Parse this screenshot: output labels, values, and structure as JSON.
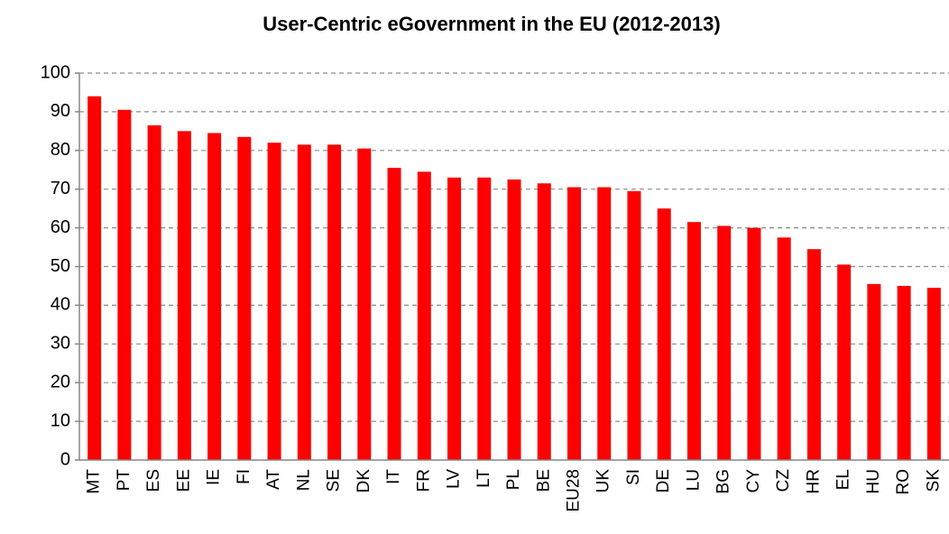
{
  "chart_data": {
    "type": "bar",
    "title": "User-Centric eGovernment in the EU (2012-2013)",
    "categories": [
      "MT",
      "PT",
      "ES",
      "EE",
      "IE",
      "FI",
      "AT",
      "NL",
      "SE",
      "DK",
      "IT",
      "FR",
      "LV",
      "LT",
      "PL",
      "BE",
      "EU28",
      "UK",
      "SI",
      "DE",
      "LU",
      "BG",
      "CY",
      "CZ",
      "HR",
      "EL",
      "HU",
      "RO",
      "SK"
    ],
    "values": [
      94,
      90.5,
      86.5,
      85,
      84.5,
      83.5,
      82,
      81.5,
      81.5,
      80.5,
      75.5,
      74.5,
      73,
      73,
      72.5,
      71.5,
      70.5,
      70.5,
      69.5,
      65,
      61.5,
      60.5,
      60,
      57.5,
      54.5,
      50.5,
      45.5,
      45,
      44.5
    ],
    "color": "#ff0000",
    "ylim": [
      0,
      100
    ],
    "yticks": [
      0,
      10,
      20,
      30,
      40,
      50,
      60,
      70,
      80,
      90,
      100
    ],
    "grid": true
  }
}
